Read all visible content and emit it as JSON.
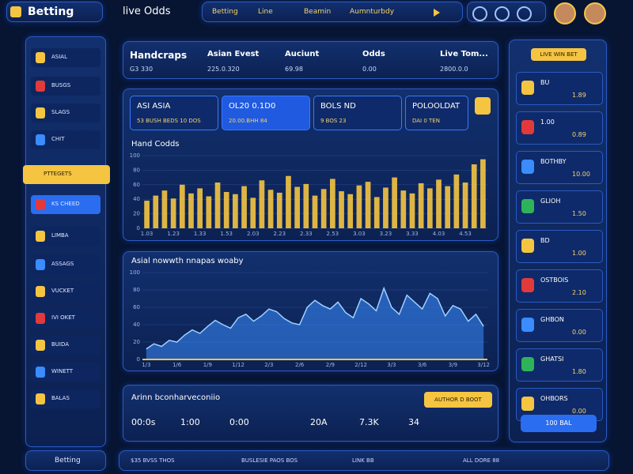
{
  "header": {
    "brand": "Betting",
    "title": "live Odds",
    "nav": [
      "Betting",
      "Line",
      "Beamin",
      "Aumnturbdy"
    ]
  },
  "sidebar": {
    "items": [
      "ASIAL",
      "BUSGS",
      "SLAGS",
      "CHIT",
      "PTTEGETS",
      "KS CHEED",
      "LIMBA",
      "ASSAGS",
      "VUCKET",
      "IVI OKET",
      "BUIDA",
      "WINETT",
      "BALAS"
    ],
    "footer": "Betting"
  },
  "stats": [
    {
      "label": "Handcraps",
      "value": "G3 330"
    },
    {
      "label": "Asian Evest",
      "value": "225.0.320"
    },
    {
      "label": "Auciunt",
      "value": "69.98"
    },
    {
      "label": "Odds",
      "value": "0.00"
    },
    {
      "label": "Live Tom...",
      "value": "2800.0.0"
    }
  ],
  "odds_cards": [
    {
      "title": "ASI ASIA",
      "sub": "53 BUSH BEDS 10 DOS"
    },
    {
      "title": "OL20 0.1D0",
      "sub": "20.00.BHH 84"
    },
    {
      "title": "BOLS ND",
      "sub": "9 BOS 23"
    },
    {
      "title": "POLOOLDAT",
      "sub": "DAI 0 TEN"
    }
  ],
  "bar_chart": {
    "type": "bar",
    "title": "Hand Codds",
    "color": "#f5c542",
    "ylim": [
      0,
      100
    ],
    "yticks": [
      0,
      20,
      40,
      60,
      80,
      100
    ],
    "categories": [
      "1.03",
      null,
      null,
      "1.23",
      null,
      null,
      "1.33",
      null,
      null,
      "1.53",
      null,
      null,
      "2.03",
      null,
      null,
      "2.23",
      null,
      null,
      "2.33",
      null,
      null,
      "2.53",
      null,
      null,
      "3.03",
      null,
      null,
      "3.23",
      null,
      null,
      "3.33",
      null,
      null,
      "4.03",
      null,
      null,
      "4.53",
      null,
      null
    ],
    "values": [
      38,
      45,
      52,
      41,
      60,
      48,
      55,
      44,
      63,
      50,
      47,
      58,
      42,
      66,
      53,
      49,
      72,
      57,
      61,
      45,
      54,
      68,
      51,
      47,
      59,
      64,
      43,
      56,
      70,
      52,
      48,
      62,
      55,
      67,
      58,
      74,
      63,
      88,
      95
    ]
  },
  "area_chart": {
    "type": "area",
    "title": "Asial nowwth nnapas woaby",
    "color": "#3a8cff",
    "ylim": [
      0,
      100
    ],
    "yticks": [
      0,
      20,
      40,
      60,
      80,
      100
    ],
    "categories": [
      "1/3",
      null,
      null,
      null,
      "1/6",
      null,
      null,
      null,
      "1/9",
      null,
      null,
      null,
      "1/12",
      null,
      null,
      null,
      "2/3",
      null,
      null,
      null,
      "2/6",
      null,
      null,
      null,
      "2/9",
      null,
      null,
      null,
      "2/12",
      null,
      null,
      null,
      "3/3",
      null,
      null,
      null,
      "3/6",
      null,
      null,
      null,
      "3/9",
      null,
      null,
      null,
      "3/12"
    ],
    "values": [
      12,
      18,
      15,
      22,
      20,
      28,
      34,
      30,
      38,
      45,
      40,
      36,
      48,
      52,
      44,
      50,
      58,
      55,
      47,
      42,
      40,
      60,
      68,
      62,
      58,
      66,
      54,
      48,
      70,
      64,
      56,
      82,
      60,
      52,
      74,
      66,
      58,
      76,
      70,
      50,
      62,
      58,
      44,
      52,
      38
    ]
  },
  "bottom": {
    "title": "Arinn bconharveconiio",
    "button": "AUTHOR D BOOT",
    "values": [
      "00:0s",
      "1:00",
      "0:00",
      "20A",
      "7.3K",
      "34"
    ]
  },
  "right_panel": {
    "title": "LIVE WIN BET",
    "rows": [
      {
        "name": "BU",
        "odd": "1.89"
      },
      {
        "name": "1.00",
        "odd": "0.89"
      },
      {
        "name": "BOTHBY",
        "odd": "10.00"
      },
      {
        "name": "GLIOH",
        "odd": "1.50"
      },
      {
        "name": "BD",
        "odd": "1.00"
      },
      {
        "name": "OSTBOIS",
        "odd": "2.10"
      },
      {
        "name": "GHBON",
        "odd": "0.00"
      },
      {
        "name": "GHATSI",
        "odd": "1.80"
      },
      {
        "name": "OHBORS",
        "odd": "0.00"
      }
    ],
    "button": "100 BAL"
  },
  "footer": {
    "items": [
      "$35 BVSS THOS",
      "BUSLESIE PAOS BOS",
      "LINK BB",
      "ALL DORE 88"
    ]
  }
}
